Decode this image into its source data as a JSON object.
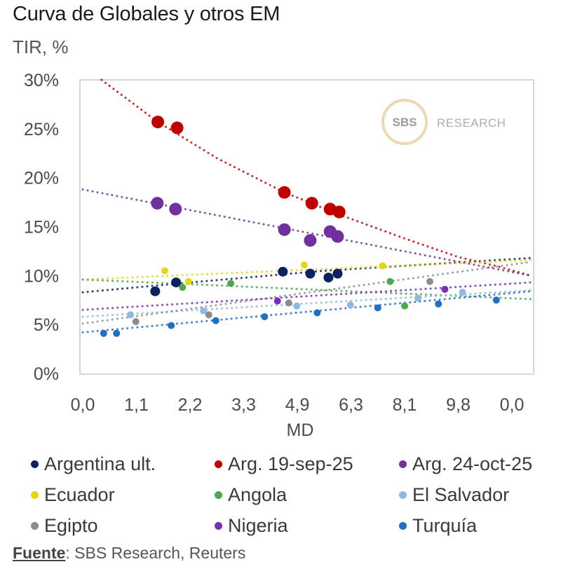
{
  "title": "Curva de Globales y otros EM",
  "watermark": {
    "badge": "SBS",
    "text": "RESEARCH"
  },
  "source": {
    "label": "Fuente",
    "text": ": SBS Research, Reuters"
  },
  "chart_data": {
    "type": "scatter",
    "title": "Curva de Globales y otros EM",
    "ylabel": "TIR, %",
    "xlabel": "MD",
    "ylim": [
      0,
      30
    ],
    "yticks": [
      0,
      5,
      10,
      15,
      20,
      25,
      30
    ],
    "ytick_labels": [
      "0%",
      "5%",
      "10%",
      "15%",
      "20%",
      "25%",
      "30%"
    ],
    "x_axis_note": "x values are in tick-position units (0 = first tick, 8 = last tick) because tick labels are non-linear",
    "xlim": [
      -0.05,
      8.45
    ],
    "xtick_labels": [
      "0,0",
      "1,1",
      "2,2",
      "3,3",
      "4,9",
      "6,3",
      "8,1",
      "9,8",
      "0,0"
    ],
    "grid": false,
    "legend_position": "bottom",
    "series": [
      {
        "name": "Argentina ult.",
        "color": "#0c2260",
        "size": "medium",
        "points": [
          [
            1.35,
            8.4
          ],
          [
            1.74,
            9.3
          ],
          [
            3.73,
            10.4
          ],
          [
            4.24,
            10.2
          ],
          [
            4.58,
            9.8
          ],
          [
            4.75,
            10.2
          ]
        ],
        "trend": [
          [
            0,
            8.3
          ],
          [
            2,
            9.3
          ],
          [
            4.5,
            10.5
          ],
          [
            8.35,
            11.8
          ]
        ]
      },
      {
        "name": "Arg. 19-sep-25",
        "color": "#c00000",
        "size": "large",
        "points": [
          [
            1.4,
            25.7
          ],
          [
            1.76,
            25.1
          ],
          [
            3.76,
            18.5
          ],
          [
            4.27,
            17.4
          ],
          [
            4.61,
            16.8
          ],
          [
            4.78,
            16.5
          ]
        ],
        "trend": [
          [
            0.35,
            30
          ],
          [
            1.4,
            25.7
          ],
          [
            2.5,
            22.0
          ],
          [
            3.76,
            18.5
          ],
          [
            4.8,
            16.2
          ],
          [
            6.0,
            13.8
          ],
          [
            7.0,
            11.9
          ],
          [
            7.7,
            11.0
          ],
          [
            8.35,
            10.0
          ]
        ]
      },
      {
        "name": "Arg. 24-oct-25",
        "color": "#7030a0",
        "size": "large",
        "points": [
          [
            1.39,
            17.4
          ],
          [
            1.73,
            16.8
          ],
          [
            3.76,
            14.7
          ],
          [
            4.24,
            13.6
          ],
          [
            4.61,
            14.5
          ],
          [
            4.75,
            14.0
          ]
        ],
        "trend": [
          [
            0,
            18.8
          ],
          [
            8.35,
            10.0
          ]
        ]
      },
      {
        "name": "Ecuador",
        "color": "#e2d815",
        "size": "small",
        "points": [
          [
            1.53,
            10.5
          ],
          [
            1.97,
            9.4
          ],
          [
            4.13,
            11.1
          ],
          [
            5.59,
            11.0
          ]
        ],
        "trend": [
          [
            0,
            9.6
          ],
          [
            8.35,
            11.6
          ]
        ]
      },
      {
        "name": "Angola",
        "color": "#4aa84f",
        "size": "small",
        "points": [
          [
            1.86,
            8.8
          ],
          [
            2.76,
            9.2
          ],
          [
            5.73,
            9.4
          ],
          [
            6.0,
            6.9
          ]
        ],
        "trend": [
          [
            0,
            9.6
          ],
          [
            8.35,
            7.6
          ]
        ]
      },
      {
        "name": "El Salvador",
        "color": "#8db8e8",
        "size": "small",
        "points": [
          [
            0.89,
            6.0
          ],
          [
            2.25,
            6.4
          ],
          [
            3.99,
            6.9
          ],
          [
            4.99,
            7.0
          ],
          [
            6.25,
            7.7
          ],
          [
            7.08,
            8.3
          ]
        ],
        "trend": [
          [
            0,
            5.8
          ],
          [
            8.35,
            8.5
          ]
        ]
      },
      {
        "name": "Egipto",
        "color": "#8c8c8c",
        "size": "small",
        "points": [
          [
            0.99,
            5.3
          ],
          [
            2.35,
            6.0
          ],
          [
            3.84,
            7.2
          ],
          [
            6.47,
            9.4
          ]
        ],
        "trend": [
          [
            0,
            5.1
          ],
          [
            8.35,
            11.4
          ]
        ]
      },
      {
        "name": "Nigeria",
        "color": "#7a2fb5",
        "size": "small",
        "points": [
          [
            3.63,
            7.4
          ],
          [
            6.75,
            8.6
          ]
        ],
        "trend": [
          [
            0,
            6.5
          ],
          [
            8.35,
            9.3
          ]
        ]
      },
      {
        "name": "Turquía",
        "color": "#1f6fc5",
        "size": "small",
        "points": [
          [
            0.39,
            4.1
          ],
          [
            0.63,
            4.1
          ],
          [
            1.65,
            4.9
          ],
          [
            2.48,
            5.4
          ],
          [
            3.39,
            5.8
          ],
          [
            4.37,
            6.2
          ],
          [
            5.5,
            6.7
          ],
          [
            6.63,
            7.1
          ],
          [
            7.71,
            7.5
          ]
        ],
        "trend": [
          [
            0,
            4.2
          ],
          [
            8.35,
            8.4
          ]
        ]
      }
    ]
  },
  "legend": {
    "rows": [
      [
        {
          "label": "Argentina ult.",
          "color": "#0c2260"
        },
        {
          "label": "Arg. 19-sep-25",
          "color": "#c00000"
        },
        {
          "label": "Arg. 24-oct-25",
          "color": "#7030a0"
        }
      ],
      [
        {
          "label": "Ecuador",
          "color": "#e2d815"
        },
        {
          "label": "Angola",
          "color": "#4aa84f"
        },
        {
          "label": "El Salvador",
          "color": "#8db8e8"
        }
      ],
      [
        {
          "label": "Egipto",
          "color": "#8c8c8c"
        },
        {
          "label": "Nigeria",
          "color": "#7a2fb5"
        },
        {
          "label": "Turquía",
          "color": "#1f6fc5"
        }
      ]
    ]
  }
}
